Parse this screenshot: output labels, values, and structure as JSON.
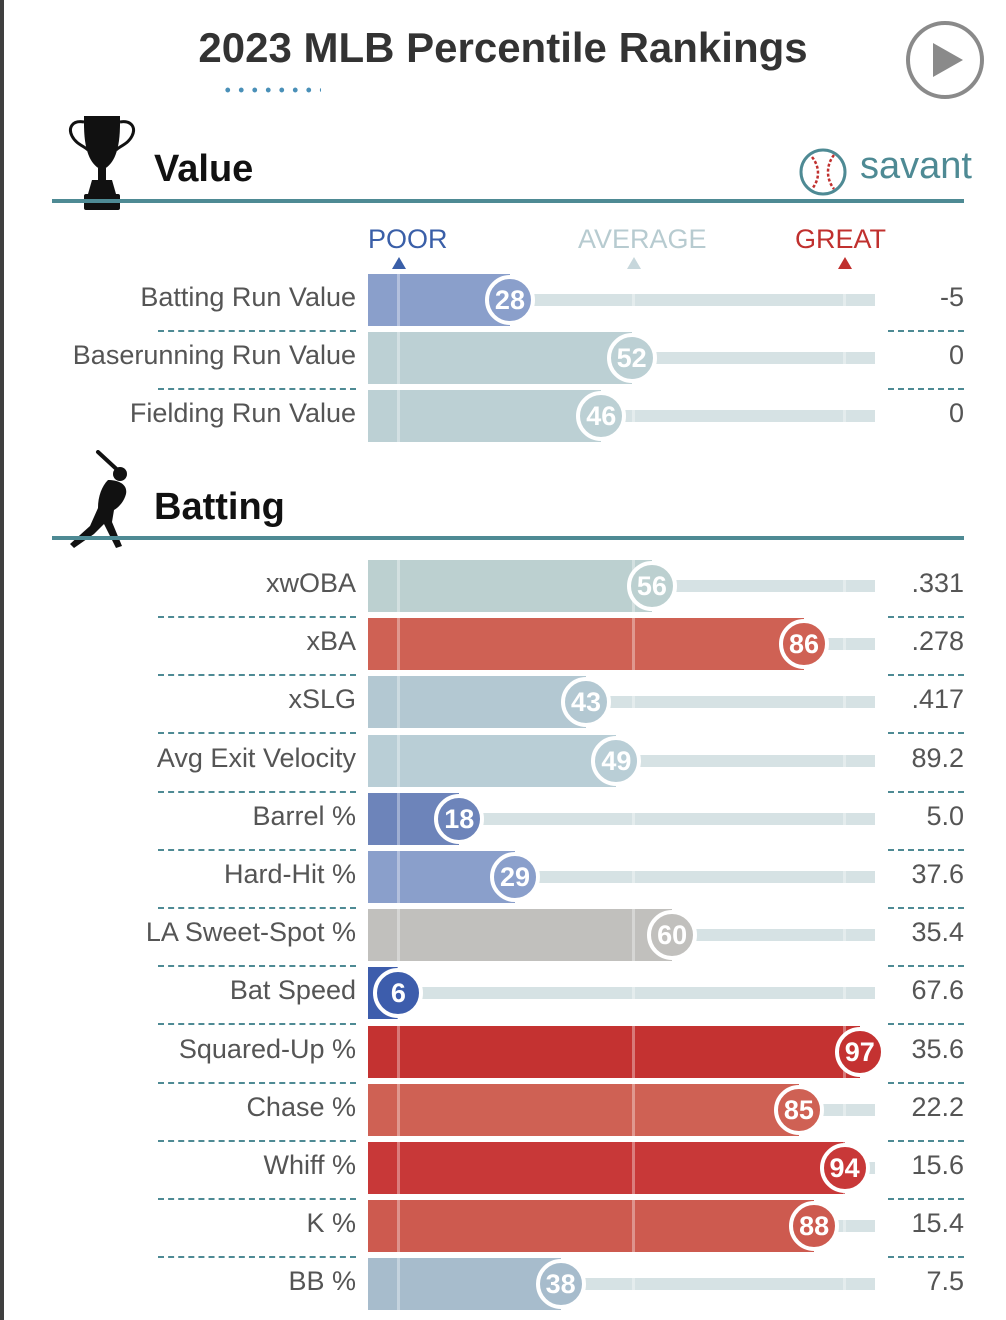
{
  "header": {
    "year": "2023",
    "title": "MLB Percentile Rankings",
    "play_icon": "play-icon"
  },
  "brand": {
    "text": "savant",
    "icon": "baseball-icon"
  },
  "scale": {
    "poor": "POOR",
    "average": "AVERAGE",
    "great": "GREAT"
  },
  "colors": {
    "accent": "#4e8a94",
    "poor": "#3a5fa8",
    "average": "#b7cbd0",
    "great": "#c0302e"
  },
  "sections": {
    "value": {
      "title": "Value",
      "icon": "trophy-icon",
      "rows": [
        {
          "label": "Batting Run Value",
          "percentile": 28,
          "value": "-5",
          "color": "#8a9fcb"
        },
        {
          "label": "Baserunning Run Value",
          "percentile": 52,
          "value": "0",
          "color": "#bcd0d4"
        },
        {
          "label": "Fielding Run Value",
          "percentile": 46,
          "value": "0",
          "color": "#bcd0d4"
        }
      ]
    },
    "batting": {
      "title": "Batting",
      "icon": "batter-icon",
      "rows": [
        {
          "label": "xwOBA",
          "percentile": 56,
          "value": ".331",
          "color": "#bcd0d0"
        },
        {
          "label": "xBA",
          "percentile": 86,
          "value": ".278",
          "color": "#cf6154"
        },
        {
          "label": "xSLG",
          "percentile": 43,
          "value": ".417",
          "color": "#b3c8d2"
        },
        {
          "label": "Avg Exit Velocity",
          "percentile": 49,
          "value": "89.2",
          "color": "#b9ced6"
        },
        {
          "label": "Barrel %",
          "percentile": 18,
          "value": "5.0",
          "color": "#6d84ba"
        },
        {
          "label": "Hard-Hit %",
          "percentile": 29,
          "value": "37.6",
          "color": "#8a9fcb"
        },
        {
          "label": "LA Sweet-Spot %",
          "percentile": 60,
          "value": "35.4",
          "color": "#c1c0bd"
        },
        {
          "label": "Bat Speed",
          "percentile": 6,
          "value": "67.6",
          "color": "#3d5dac"
        },
        {
          "label": "Squared-Up %",
          "percentile": 97,
          "value": "35.6",
          "color": "#c43231"
        },
        {
          "label": "Chase %",
          "percentile": 85,
          "value": "22.2",
          "color": "#cf6154"
        },
        {
          "label": "Whiff %",
          "percentile": 94,
          "value": "15.6",
          "color": "#c83838"
        },
        {
          "label": "K %",
          "percentile": 88,
          "value": "15.4",
          "color": "#cd5a4f"
        },
        {
          "label": "BB %",
          "percentile": 38,
          "value": "7.5",
          "color": "#a7bccc"
        }
      ]
    }
  }
}
